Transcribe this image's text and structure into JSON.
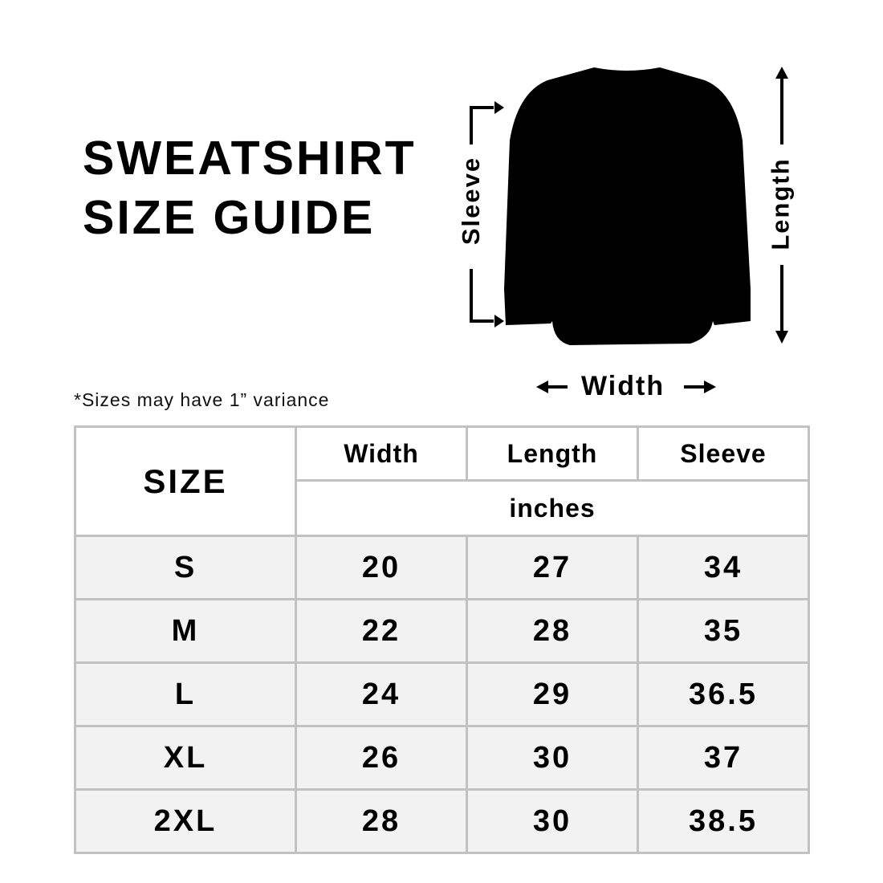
{
  "title": {
    "line1": "SWEATSHIRT",
    "line2": "SIZE GUIDE"
  },
  "note": "*Sizes may have 1” variance",
  "diagram": {
    "sleeve": "Sleeve",
    "length": "Length",
    "width": "Width",
    "garment_color": "#000000"
  },
  "table": {
    "size_header": "SIZE",
    "columns": [
      "Width",
      "Length",
      "Sleeve"
    ],
    "unit": "inches",
    "rows": [
      {
        "size": "S",
        "width": "20",
        "length": "27",
        "sleeve": "34"
      },
      {
        "size": "M",
        "width": "22",
        "length": "28",
        "sleeve": "35"
      },
      {
        "size": "L",
        "width": "24",
        "length": "29",
        "sleeve": "36.5"
      },
      {
        "size": "XL",
        "width": "26",
        "length": "30",
        "sleeve": "37"
      },
      {
        "size": "2XL",
        "width": "28",
        "length": "30",
        "sleeve": "38.5"
      }
    ],
    "row_background": "#f2f2f2",
    "border_color": "#c2c2c2"
  }
}
